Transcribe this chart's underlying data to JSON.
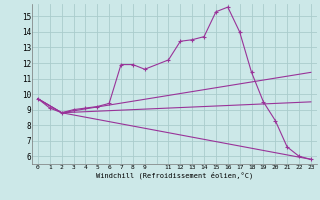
{
  "xlabel": "Windchill (Refroidissement éolien,°C)",
  "bg_color": "#cce8e8",
  "grid_color": "#aacccc",
  "line_color": "#993399",
  "xlim": [
    -0.5,
    23.5
  ],
  "ylim": [
    5.5,
    15.8
  ],
  "main_x": [
    0,
    1,
    2,
    3,
    4,
    5,
    6,
    7,
    8,
    9,
    11,
    12,
    13,
    14,
    15,
    16,
    17,
    18,
    19,
    20,
    21,
    22,
    23
  ],
  "main_y": [
    9.7,
    9.1,
    8.8,
    9.0,
    9.1,
    9.2,
    9.4,
    11.9,
    11.9,
    11.6,
    12.2,
    13.4,
    13.5,
    13.7,
    15.3,
    15.6,
    14.0,
    11.4,
    9.5,
    8.3,
    6.6,
    6.0,
    5.8
  ],
  "line1_x": [
    0,
    2,
    23
  ],
  "line1_y": [
    9.7,
    8.8,
    11.4
  ],
  "line2_x": [
    0,
    2,
    23
  ],
  "line2_y": [
    9.7,
    8.8,
    9.5
  ],
  "line3_x": [
    0,
    2,
    23
  ],
  "line3_y": [
    9.7,
    8.8,
    5.8
  ],
  "x_tick_labels": [
    "0",
    "1",
    "2",
    "3",
    "4",
    "5",
    "6",
    "7",
    "8",
    "9",
    "",
    "11",
    "12",
    "13",
    "14",
    "15",
    "16",
    "17",
    "18",
    "19",
    "20",
    "21",
    "22",
    "23"
  ],
  "y_tick_labels": [
    "6",
    "7",
    "8",
    "9",
    "10",
    "11",
    "12",
    "13",
    "14",
    "15"
  ]
}
